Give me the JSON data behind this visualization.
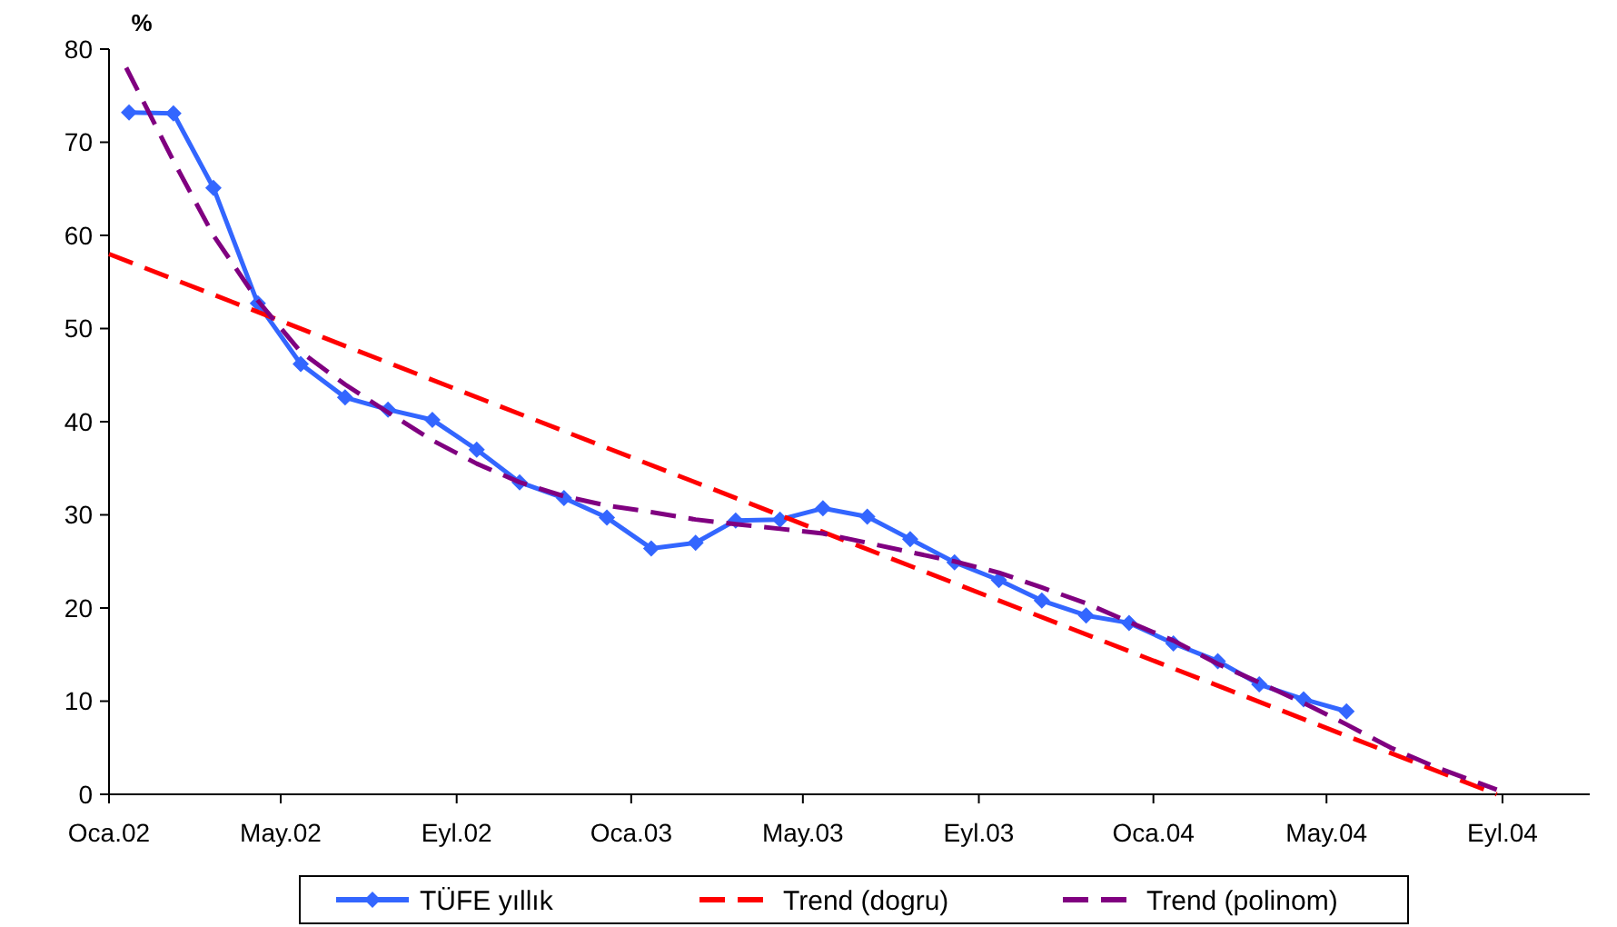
{
  "chart_data": {
    "type": "line",
    "ylabel": "%",
    "legend": "bottom",
    "grid": false,
    "xlim": [
      "2002-01-01",
      "2004-11-01"
    ],
    "ylim": [
      0,
      80
    ],
    "yticks": [
      0,
      10,
      20,
      30,
      40,
      50,
      60,
      70,
      80
    ],
    "xticks": [
      {
        "value": "2002-01-01",
        "label": "Oca.02"
      },
      {
        "value": "2002-05-01",
        "label": "May.02"
      },
      {
        "value": "2002-09-01",
        "label": "Eyl.02"
      },
      {
        "value": "2003-01-01",
        "label": "Oca.03"
      },
      {
        "value": "2003-05-01",
        "label": "May.03"
      },
      {
        "value": "2003-09-01",
        "label": "Eyl.03"
      },
      {
        "value": "2004-01-01",
        "label": "Oca.04"
      },
      {
        "value": "2004-05-01",
        "label": "May.04"
      },
      {
        "value": "2004-09-01",
        "label": "Eyl.04"
      }
    ],
    "series": [
      {
        "name": "TÜFE yıllık",
        "color": "#3366ff",
        "marker": "diamond",
        "line_style": "solid",
        "x": [
          "2002-01-15",
          "2002-02-15",
          "2002-03-15",
          "2002-04-15",
          "2002-05-15",
          "2002-06-15",
          "2002-07-15",
          "2002-08-15",
          "2002-09-15",
          "2002-10-15",
          "2002-11-15",
          "2002-12-15",
          "2003-01-15",
          "2003-02-15",
          "2003-03-15",
          "2003-04-15",
          "2003-05-15",
          "2003-06-15",
          "2003-07-15",
          "2003-08-15",
          "2003-09-15",
          "2003-10-15",
          "2003-11-15",
          "2003-12-15",
          "2004-01-15",
          "2004-02-15",
          "2004-03-15",
          "2004-04-15",
          "2004-05-15"
        ],
        "values": [
          73.2,
          73.1,
          65.1,
          52.7,
          46.2,
          42.6,
          41.3,
          40.2,
          37.0,
          33.5,
          31.8,
          29.7,
          26.4,
          27.0,
          29.4,
          29.5,
          30.7,
          29.8,
          27.4,
          24.9,
          23.0,
          20.8,
          19.2,
          18.4,
          16.2,
          14.3,
          11.8,
          10.2,
          8.9
        ]
      },
      {
        "name": "Trend (dogru)",
        "color": "#ff0000",
        "marker": "none",
        "line_style": "dashed",
        "x": [
          "2002-01-01",
          "2004-08-28"
        ],
        "values": [
          58,
          0
        ]
      },
      {
        "name": "Trend (polinom)",
        "color": "#800080",
        "marker": "none",
        "line_style": "dashed",
        "x": [
          "2002-01-13",
          "2002-02-15",
          "2002-03-15",
          "2002-04-15",
          "2002-05-15",
          "2002-06-15",
          "2002-07-15",
          "2002-08-15",
          "2002-09-15",
          "2002-10-15",
          "2002-11-15",
          "2002-12-15",
          "2003-01-15",
          "2003-02-15",
          "2003-03-15",
          "2003-04-15",
          "2003-05-15",
          "2003-06-15",
          "2003-07-15",
          "2003-08-15",
          "2003-09-15",
          "2003-10-15",
          "2003-11-15",
          "2003-12-15",
          "2004-01-15",
          "2004-02-15",
          "2004-03-15",
          "2004-04-15",
          "2004-05-15",
          "2004-06-15",
          "2004-07-15",
          "2004-08-28"
        ],
        "values": [
          78,
          68,
          60,
          53,
          47.5,
          44,
          41,
          38,
          35.5,
          33.5,
          32,
          31,
          30.3,
          29.5,
          29,
          28.5,
          28,
          27,
          26,
          25,
          23.8,
          22.2,
          20.5,
          18.5,
          16.5,
          14,
          12,
          9.8,
          7.5,
          5,
          3,
          0.5
        ]
      }
    ]
  }
}
